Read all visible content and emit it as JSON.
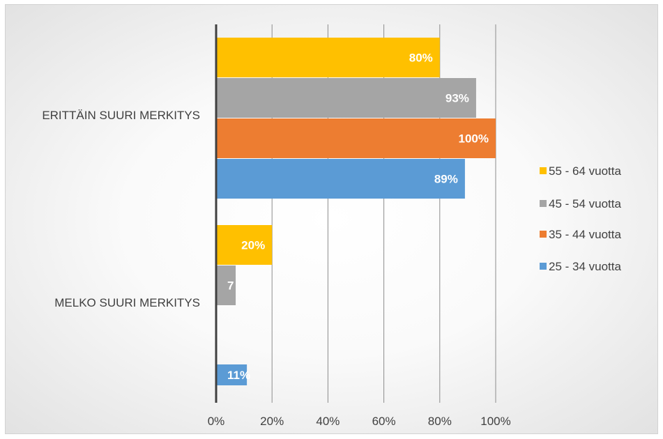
{
  "chart_data": {
    "type": "bar",
    "orientation": "horizontal",
    "title": "",
    "xlabel": "",
    "ylabel": "",
    "categories": [
      "ERITTÄIN SUURI MERKITYS",
      "MELKO SUURI MERKITYS"
    ],
    "series": [
      {
        "name": "55 - 64 vuotta",
        "color": "#FFC000",
        "values": [
          80,
          20
        ],
        "labels": [
          "80%",
          "20%"
        ]
      },
      {
        "name": "45 - 54 vuotta",
        "color": "#A5A5A5",
        "values": [
          93,
          7
        ],
        "labels": [
          "93%",
          "7"
        ]
      },
      {
        "name": "35 - 44 vuotta",
        "color": "#ED7D31",
        "values": [
          100,
          0
        ],
        "labels": [
          "100%",
          ""
        ]
      },
      {
        "name": "25 - 34 vuotta",
        "color": "#5B9BD5",
        "values": [
          89,
          11
        ],
        "labels": [
          "89%",
          "11%"
        ]
      }
    ],
    "xlim": [
      0,
      100
    ],
    "x_ticks": [
      0,
      20,
      40,
      60,
      80,
      100
    ],
    "x_tick_labels": [
      "0%",
      "20%",
      "40%",
      "60%",
      "80%",
      "100%"
    ],
    "grid": true,
    "legend_position": "right"
  }
}
